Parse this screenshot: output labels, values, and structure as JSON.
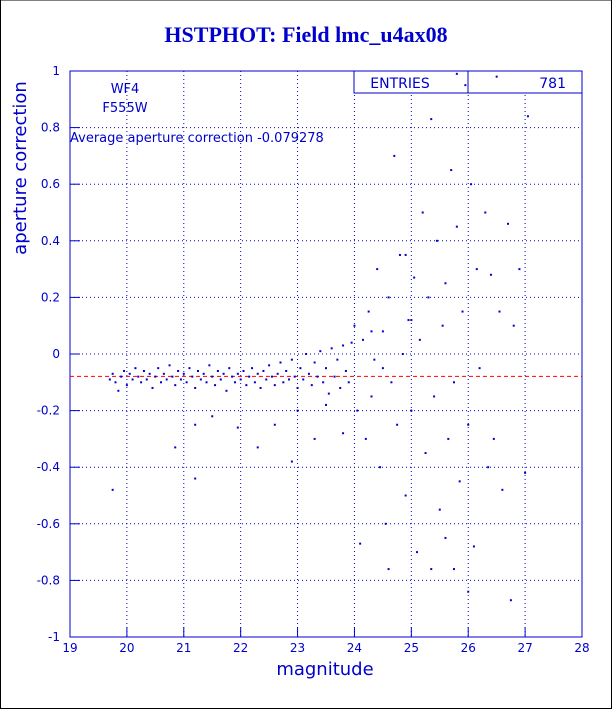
{
  "chart_data": {
    "type": "scatter",
    "title": "HSTPHOT: Field lmc_u4ax08",
    "x_label": "magnitude",
    "y_label": "aperture correction",
    "annotations": [
      "WF4",
      "F555W"
    ],
    "hline": {
      "label": "Average aperture correction",
      "value": -0.079278,
      "color": "#ff0000"
    },
    "stats": {
      "label": "ENTRIES",
      "value": 781
    },
    "xlim": [
      19,
      28
    ],
    "ylim": [
      -1,
      1
    ],
    "xticks": [
      19,
      20,
      21,
      22,
      23,
      24,
      25,
      26,
      27,
      28
    ],
    "yticks": [
      -1,
      -0.8,
      -0.6,
      -0.4,
      -0.2,
      0,
      0.2,
      0.4,
      0.6,
      0.8,
      1
    ],
    "grid": true,
    "series": [
      {
        "name": "entries",
        "color": "#0000cc",
        "x": [
          19.7,
          19.75,
          19.8,
          19.85,
          19.9,
          19.95,
          20.0,
          20.05,
          20.1,
          20.15,
          20.2,
          20.25,
          20.3,
          20.35,
          20.4,
          20.45,
          20.5,
          20.55,
          20.6,
          20.65,
          20.7,
          20.75,
          20.8,
          20.85,
          20.9,
          20.95,
          21.0,
          21.05,
          21.1,
          21.15,
          21.2,
          21.25,
          21.3,
          21.35,
          21.4,
          21.45,
          21.5,
          21.55,
          21.6,
          21.65,
          21.7,
          21.75,
          21.8,
          21.85,
          21.9,
          21.95,
          22.0,
          22.05,
          22.1,
          22.15,
          22.2,
          22.25,
          22.3,
          22.35,
          22.4,
          22.45,
          22.5,
          22.55,
          22.6,
          22.65,
          22.7,
          22.75,
          22.8,
          22.85,
          22.9,
          22.95,
          23.0,
          23.05,
          23.1,
          23.15,
          23.2,
          23.25,
          23.3,
          23.35,
          23.4,
          23.45,
          23.5,
          23.55,
          23.6,
          23.65,
          23.7,
          23.75,
          23.8,
          23.85,
          23.9,
          23.95,
          19.75,
          20.85,
          21.2,
          21.2,
          21.5,
          21.95,
          22.3,
          22.6,
          22.9,
          23.0,
          23.3,
          23.5,
          23.8,
          24.0,
          24.05,
          24.1,
          24.15,
          24.2,
          24.25,
          24.3,
          24.35,
          24.4,
          24.45,
          24.5,
          24.55,
          24.6,
          24.65,
          24.7,
          24.75,
          24.8,
          24.85,
          24.9,
          24.95,
          25.0,
          25.05,
          25.1,
          25.15,
          25.2,
          25.25,
          25.3,
          25.35,
          25.4,
          25.45,
          25.5,
          25.55,
          25.6,
          25.65,
          25.7,
          25.75,
          25.8,
          25.85,
          25.9,
          25.95,
          26.0,
          26.05,
          26.1,
          26.15,
          26.2,
          26.3,
          26.35,
          26.4,
          26.45,
          26.5,
          26.55,
          26.6,
          26.7,
          26.75,
          26.8,
          26.9,
          27.0,
          27.05,
          25.75,
          25.35,
          24.6,
          26.0,
          25.8,
          25.0,
          24.9,
          24.3,
          24.5,
          25.6
        ],
        "y": [
          -0.09,
          -0.07,
          -0.1,
          -0.13,
          -0.08,
          -0.06,
          -0.11,
          -0.07,
          -0.09,
          -0.05,
          -0.08,
          -0.1,
          -0.06,
          -0.09,
          -0.07,
          -0.12,
          -0.08,
          -0.05,
          -0.1,
          -0.07,
          -0.09,
          -0.04,
          -0.08,
          -0.11,
          -0.06,
          -0.09,
          -0.07,
          -0.1,
          -0.05,
          -0.08,
          -0.12,
          -0.06,
          -0.09,
          -0.07,
          -0.1,
          -0.04,
          -0.08,
          -0.11,
          -0.06,
          -0.09,
          -0.07,
          -0.13,
          -0.05,
          -0.08,
          -0.1,
          -0.07,
          -0.09,
          -0.06,
          -0.11,
          -0.08,
          -0.05,
          -0.1,
          -0.07,
          -0.12,
          -0.06,
          -0.09,
          -0.04,
          -0.08,
          -0.11,
          -0.07,
          -0.03,
          -0.1,
          -0.06,
          -0.09,
          -0.02,
          -0.08,
          -0.12,
          -0.05,
          -0.09,
          0.0,
          -0.07,
          -0.11,
          -0.03,
          -0.08,
          0.01,
          -0.1,
          -0.05,
          -0.14,
          0.02,
          -0.08,
          -0.02,
          -0.12,
          0.03,
          -0.06,
          -0.1,
          0.04,
          -0.48,
          -0.33,
          -0.44,
          -0.25,
          -0.22,
          -0.26,
          -0.33,
          -0.25,
          -0.38,
          -0.2,
          -0.3,
          -0.18,
          -0.28,
          0.1,
          -0.2,
          -0.67,
          0.05,
          -0.3,
          0.15,
          -0.15,
          -0.02,
          0.3,
          -0.4,
          0.08,
          -0.6,
          0.2,
          -0.1,
          0.7,
          -0.25,
          0.35,
          0.0,
          -0.5,
          0.12,
          -0.2,
          0.27,
          -0.7,
          0.05,
          0.5,
          -0.35,
          0.2,
          0.83,
          -0.15,
          0.4,
          -0.55,
          0.1,
          0.25,
          -0.3,
          0.65,
          -0.1,
          0.45,
          -0.45,
          0.15,
          0.95,
          -0.25,
          0.6,
          -0.68,
          0.3,
          -0.05,
          0.5,
          -0.4,
          0.28,
          -0.3,
          0.98,
          0.15,
          -0.48,
          0.46,
          -0.87,
          0.1,
          0.3,
          -0.42,
          0.84,
          -0.76,
          -0.76,
          -0.76,
          -0.84,
          0.99,
          0.12,
          0.35,
          0.08,
          -0.05,
          -0.65
        ]
      }
    ]
  }
}
